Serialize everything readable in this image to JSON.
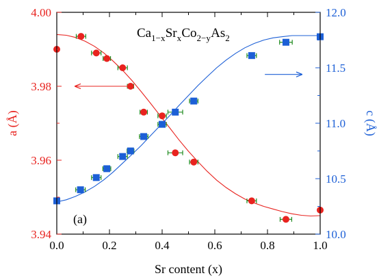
{
  "chart_data": {
    "type": "scatter",
    "title": "Ca1−xSrxCo2−yAs2",
    "title_parts": {
      "base": [
        "Ca",
        "Sr",
        "Co",
        "As"
      ],
      "subs": [
        "1−x",
        "x",
        "2−y",
        "2"
      ]
    },
    "panel_label": "(a)",
    "xlabel": "Sr content (x)",
    "ylabel_left": "a (Å)",
    "ylabel_right": "c (Å)",
    "xlim": [
      0.0,
      1.0
    ],
    "ylim_left": [
      3.94,
      4.0
    ],
    "ylim_right": [
      10.0,
      12.0
    ],
    "x_ticks": [
      "0.0",
      "0.2",
      "0.4",
      "0.6",
      "0.8",
      "1.0"
    ],
    "y_left_ticks": [
      "3.94",
      "3.96",
      "3.98",
      "4.00"
    ],
    "y_right_ticks": [
      "10.0",
      "10.5",
      "11.0",
      "11.5",
      "12.0"
    ],
    "grid": false,
    "colors": {
      "a_series": "#e8231f",
      "c_series": "#1c5fd6",
      "error_bars": "#1e8a1e"
    },
    "series": [
      {
        "axis": "left",
        "marker": "circle",
        "x": [
          0.0,
          0.092,
          0.15,
          0.19,
          0.25,
          0.28,
          0.33,
          0.4,
          0.45,
          0.52,
          0.74,
          0.87,
          1.0
        ],
        "y": [
          3.99,
          3.9935,
          3.989,
          3.9875,
          3.985,
          3.98,
          3.973,
          3.972,
          3.962,
          3.9595,
          3.949,
          3.944,
          3.9465
        ],
        "xerr": [
          0,
          0.018,
          0.018,
          0.014,
          0.018,
          0.012,
          0.014,
          0.016,
          0.028,
          0.016,
          0.018,
          0.022,
          0
        ],
        "fit_y": [
          3.994,
          3.9938,
          3.9932,
          3.9922,
          3.9908,
          3.989,
          3.9868,
          3.9843,
          3.9815,
          3.9785,
          3.9753,
          3.972,
          3.9687,
          3.9655,
          3.9624,
          3.9596,
          3.957,
          3.9546,
          3.9526,
          3.9509,
          3.9495,
          3.9484,
          3.9475,
          3.9468,
          3.9461,
          3.9455,
          3.9451,
          3.9449,
          3.945
        ]
      },
      {
        "axis": "right",
        "marker": "square",
        "x": [
          0.0,
          0.09,
          0.15,
          0.19,
          0.25,
          0.28,
          0.33,
          0.4,
          0.45,
          0.52,
          0.74,
          0.87,
          1.0
        ],
        "y": [
          10.3,
          10.4,
          10.51,
          10.59,
          10.7,
          10.75,
          10.88,
          10.99,
          11.1,
          11.2,
          11.61,
          11.73,
          11.78
        ],
        "xerr": [
          0,
          0.018,
          0.018,
          0.015,
          0.018,
          0.013,
          0.016,
          0.016,
          0.028,
          0.016,
          0.018,
          0.024,
          0
        ],
        "fit_y": [
          10.29,
          10.31,
          10.34,
          10.38,
          10.43,
          10.49,
          10.56,
          10.64,
          10.72,
          10.8,
          10.89,
          10.98,
          11.07,
          11.16,
          11.25,
          11.34,
          11.42,
          11.5,
          11.57,
          11.63,
          11.68,
          11.72,
          11.75,
          11.77,
          11.78,
          11.79,
          11.79,
          11.79,
          11.79
        ]
      }
    ],
    "fit_x": [
      0.0,
      0.036,
      0.071,
      0.107,
      0.143,
      0.179,
      0.214,
      0.25,
      0.286,
      0.321,
      0.357,
      0.393,
      0.429,
      0.464,
      0.5,
      0.536,
      0.571,
      0.607,
      0.643,
      0.679,
      0.714,
      0.75,
      0.786,
      0.821,
      0.857,
      0.893,
      0.929,
      0.964,
      1.0
    ],
    "annotations": [
      {
        "type": "arrow",
        "axis": "left",
        "direction": "left",
        "from": [
          0.28,
          3.98
        ],
        "to": [
          0.07,
          3.98
        ]
      },
      {
        "type": "arrow",
        "axis": "right",
        "direction": "right",
        "from": [
          0.79,
          11.44
        ],
        "to": [
          0.93,
          11.44
        ]
      }
    ]
  }
}
